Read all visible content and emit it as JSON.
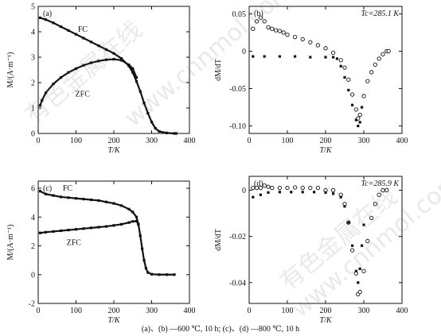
{
  "caption": "(a)、(b) —600 ℃, 10 h; (c)、(d) —800 ℃, 10 h",
  "watermarks": [
    "有色金属在线",
    "www.cnnmol.com",
    "有色金属在线",
    "www.cnnmol.com"
  ],
  "chart_data": [
    {
      "type": "line",
      "panel_label": "(a)",
      "xlabel": "T/K",
      "ylabel": "M/(A·m⁻¹)",
      "xlim": [
        0,
        400
      ],
      "ylim": [
        0,
        5
      ],
      "xticks": [
        0,
        100,
        200,
        300,
        400
      ],
      "yticks": [
        0,
        1,
        2,
        3,
        4,
        5
      ],
      "annotations": [
        {
          "text": "FC",
          "x": 105,
          "y": 4.0
        },
        {
          "text": "ZFC",
          "x": 98,
          "y": 1.45
        }
      ],
      "series": [
        {
          "name": "FC",
          "marker": "filled-square",
          "x": [
            5,
            20,
            40,
            60,
            80,
            100,
            120,
            140,
            160,
            180,
            200,
            220,
            240,
            250,
            260,
            270,
            280,
            290,
            300,
            310,
            320,
            340,
            360,
            365
          ],
          "y": [
            4.55,
            4.48,
            4.35,
            4.2,
            4.05,
            3.9,
            3.75,
            3.6,
            3.45,
            3.3,
            3.15,
            2.95,
            2.65,
            2.4,
            2.05,
            1.65,
            1.2,
            0.8,
            0.45,
            0.2,
            0.08,
            0.02,
            0.0,
            0.0
          ]
        },
        {
          "name": "ZFC",
          "marker": "filled-square",
          "x": [
            5,
            10,
            20,
            40,
            60,
            80,
            100,
            120,
            140,
            160,
            180,
            200,
            220,
            240,
            250,
            260
          ],
          "y": [
            1.1,
            1.3,
            1.6,
            1.95,
            2.2,
            2.4,
            2.55,
            2.68,
            2.78,
            2.85,
            2.9,
            2.92,
            2.88,
            2.7,
            2.55,
            2.2
          ]
        }
      ]
    },
    {
      "type": "scatter",
      "panel_label": "(b)",
      "panel_note": "Tc=285.1 K",
      "xlabel": "T/K",
      "ylabel": "dM/dT",
      "xlim": [
        0,
        400
      ],
      "ylim": [
        -0.11,
        0.06
      ],
      "xticks": [
        0,
        100,
        200,
        300,
        400
      ],
      "yticks": [
        0.05,
        0,
        -0.05,
        -0.1
      ],
      "series": [
        {
          "marker": "open-circle",
          "x": [
            10,
            20,
            30,
            40,
            50,
            60,
            70,
            80,
            90,
            100,
            120,
            140,
            160,
            180,
            200,
            220,
            240,
            250,
            260,
            270,
            280,
            285,
            290,
            300,
            310,
            320,
            330,
            340,
            350,
            360,
            365
          ],
          "y": [
            0.03,
            0.04,
            0.045,
            0.04,
            0.032,
            0.03,
            0.028,
            0.027,
            0.025,
            0.022,
            0.019,
            0.016,
            0.012,
            0.008,
            0.004,
            -0.002,
            -0.012,
            -0.022,
            -0.038,
            -0.058,
            -0.078,
            -0.09,
            -0.085,
            -0.06,
            -0.04,
            -0.028,
            -0.018,
            -0.01,
            -0.004,
            0.0,
            0.0
          ]
        },
        {
          "marker": "filled-square",
          "x": [
            10,
            40,
            80,
            120,
            160,
            200,
            220,
            230,
            240,
            250,
            260,
            270,
            280,
            285,
            290,
            295
          ],
          "y": [
            -0.007,
            -0.007,
            -0.007,
            -0.007,
            -0.008,
            -0.008,
            -0.008,
            -0.01,
            -0.02,
            -0.035,
            -0.052,
            -0.072,
            -0.092,
            -0.1,
            -0.095,
            -0.075
          ]
        }
      ]
    },
    {
      "type": "line",
      "panel_label": "(c)",
      "xlabel": "T/K",
      "ylabel": "M/(A·m⁻¹)",
      "xlim": [
        0,
        400
      ],
      "ylim": [
        -2,
        6.5
      ],
      "xticks": [
        0,
        100,
        200,
        300,
        400
      ],
      "yticks": [
        -2,
        0,
        2,
        4,
        6
      ],
      "annotations": [
        {
          "text": "FC",
          "x": 65,
          "y": 5.85
        },
        {
          "text": "ZFC",
          "x": 75,
          "y": 2.05
        }
      ],
      "series": [
        {
          "name": "FC",
          "marker": "filled-square",
          "x": [
            5,
            20,
            40,
            60,
            80,
            100,
            120,
            140,
            160,
            180,
            200,
            220,
            240,
            250,
            260,
            265,
            270,
            275,
            280,
            285,
            290,
            300,
            320,
            340,
            360
          ],
          "y": [
            5.8,
            5.6,
            5.5,
            5.4,
            5.35,
            5.3,
            5.25,
            5.2,
            5.15,
            5.05,
            4.95,
            4.8,
            4.55,
            4.35,
            4.0,
            3.5,
            2.7,
            1.8,
            1.0,
            0.45,
            0.15,
            0.03,
            0.0,
            0.0,
            0.0
          ]
        },
        {
          "name": "ZFC",
          "marker": "filled-square",
          "x": [
            5,
            20,
            40,
            60,
            80,
            100,
            120,
            140,
            160,
            180,
            200,
            220,
            240,
            250,
            260,
            265
          ],
          "y": [
            2.9,
            2.95,
            3.0,
            3.05,
            3.1,
            3.15,
            3.2,
            3.25,
            3.3,
            3.35,
            3.42,
            3.5,
            3.62,
            3.7,
            3.72,
            3.5
          ]
        }
      ]
    },
    {
      "type": "scatter",
      "panel_label": "(d)",
      "panel_note": "Tc=285.9 K",
      "xlabel": "T/K",
      "ylabel": "dM/dT",
      "xlim": [
        0,
        400
      ],
      "ylim": [
        -0.049,
        0.006
      ],
      "xticks": [
        0,
        100,
        200,
        300,
        400
      ],
      "yticks": [
        0,
        -0.02,
        -0.04
      ],
      "series": [
        {
          "marker": "open-circle",
          "x": [
            10,
            20,
            30,
            40,
            50,
            60,
            80,
            100,
            120,
            140,
            160,
            180,
            200,
            220,
            240,
            250,
            260,
            270,
            280,
            285,
            290,
            300,
            310,
            320,
            330,
            340,
            350,
            360
          ],
          "y": [
            0.001,
            0.001,
            0.001,
            0.002,
            0.0015,
            0.001,
            0.001,
            0.001,
            0.0012,
            0.001,
            0.001,
            0.001,
            0.0,
            0.0,
            -0.002,
            -0.006,
            -0.014,
            -0.026,
            -0.036,
            -0.045,
            -0.044,
            -0.035,
            -0.022,
            -0.012,
            -0.006,
            -0.002,
            0.0,
            0.0
          ]
        },
        {
          "marker": "filled-square",
          "x": [
            10,
            30,
            50,
            80,
            110,
            140,
            170,
            200,
            220,
            240,
            250,
            260,
            270,
            280,
            285,
            290,
            295,
            300
          ],
          "y": [
            -0.003,
            -0.002,
            -0.001,
            -0.0008,
            -0.0008,
            -0.0008,
            -0.0008,
            -0.001,
            -0.0015,
            -0.003,
            -0.007,
            -0.014,
            -0.024,
            -0.035,
            -0.04,
            -0.034,
            -0.024,
            -0.015
          ]
        }
      ]
    }
  ]
}
